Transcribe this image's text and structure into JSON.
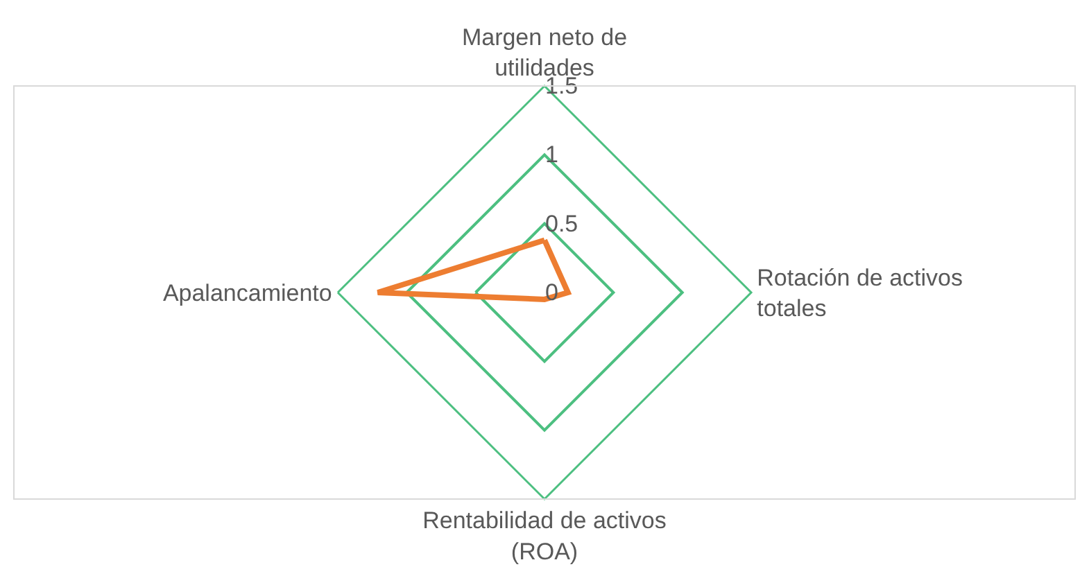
{
  "chart_data": {
    "type": "radar",
    "categories": [
      "Margen neto de utilidades",
      "Rotación de activos totales",
      "Rentabilidad de activos (ROA)",
      "Apalancamiento"
    ],
    "series": [
      {
        "color": "#ed7d31",
        "values": [
          0.38,
          0.17,
          0.05,
          1.21
        ]
      }
    ],
    "ylim": [
      0,
      1.5
    ],
    "yticks": [
      0,
      0.5,
      1,
      1.5
    ],
    "grid": true
  }
}
